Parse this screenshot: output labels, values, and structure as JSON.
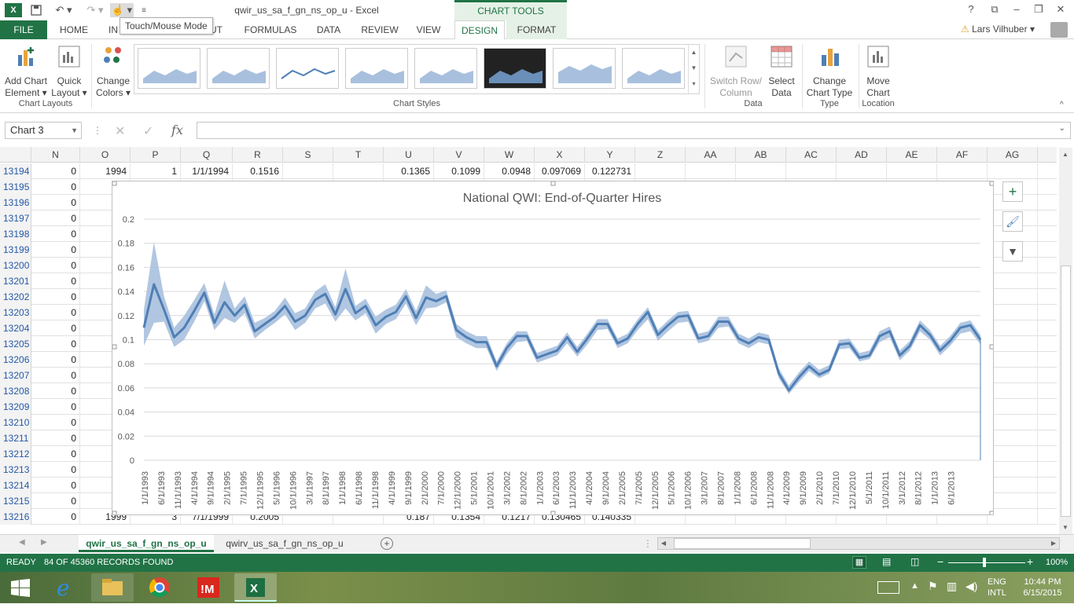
{
  "titlebar": {
    "doc_title": "qwir_us_sa_f_gn_ns_op_u - Excel",
    "context_group": "CHART TOOLS",
    "help": "?",
    "tooltip": "Touch/Mouse Mode"
  },
  "tabs": [
    "FILE",
    "HOME",
    "INSERT",
    "PAGE LAYOUT",
    "FORMULAS",
    "DATA",
    "REVIEW",
    "VIEW",
    "DESIGN",
    "FORMAT"
  ],
  "tab_labels": {
    "file": "FILE",
    "home": "HOME",
    "insert": "IN",
    "formulas": "FORMULAS",
    "data": "DATA",
    "review": "REVIEW",
    "view": "VIEW",
    "design": "DESIGN",
    "format": "FORMAT"
  },
  "user": {
    "name": "Lars Vilhuber"
  },
  "ribbon": {
    "add_chart_element": [
      "Add Chart",
      "Element ▾"
    ],
    "quick_layout": [
      "Quick",
      "Layout ▾"
    ],
    "change_colors": [
      "Change",
      "Colors ▾"
    ],
    "switch_row_col": [
      "Switch Row/",
      "Column"
    ],
    "select_data": [
      "Select",
      "Data"
    ],
    "change_chart_type": [
      "Change",
      "Chart Type"
    ],
    "move_chart": [
      "Move",
      "Chart"
    ],
    "groups": {
      "chart_layouts": "Chart Layouts",
      "chart_styles": "Chart Styles",
      "data": "Data",
      "type": "Type",
      "location": "Location"
    }
  },
  "formula_bar": {
    "name_box": "Chart 3",
    "fx": "fx",
    "value": ""
  },
  "columns": [
    "N",
    "O",
    "P",
    "Q",
    "R",
    "S",
    "T",
    "U",
    "V",
    "W",
    "X",
    "Y",
    "Z",
    "AA",
    "AB",
    "AC",
    "AD",
    "AE",
    "AF",
    "AG"
  ],
  "rows": [
    {
      "id": "13194",
      "cells": [
        "0",
        "1994",
        "1",
        "1/1/1994",
        "0.1516",
        "",
        "",
        "0.1365",
        "0.1099",
        "0.0948",
        "0.097069",
        "0.122731"
      ]
    },
    {
      "id": "13195",
      "cells": [
        "0"
      ]
    },
    {
      "id": "13196",
      "cells": [
        "0"
      ]
    },
    {
      "id": "13197",
      "cells": [
        "0"
      ]
    },
    {
      "id": "13198",
      "cells": [
        "0"
      ]
    },
    {
      "id": "13199",
      "cells": [
        "0"
      ]
    },
    {
      "id": "13200",
      "cells": [
        "0"
      ]
    },
    {
      "id": "13201",
      "cells": [
        "0"
      ]
    },
    {
      "id": "13202",
      "cells": [
        "0"
      ]
    },
    {
      "id": "13203",
      "cells": [
        "0"
      ]
    },
    {
      "id": "13204",
      "cells": [
        "0"
      ]
    },
    {
      "id": "13205",
      "cells": [
        "0"
      ]
    },
    {
      "id": "13206",
      "cells": [
        "0"
      ]
    },
    {
      "id": "13207",
      "cells": [
        "0"
      ]
    },
    {
      "id": "13208",
      "cells": [
        "0"
      ]
    },
    {
      "id": "13209",
      "cells": [
        "0"
      ]
    },
    {
      "id": "13210",
      "cells": [
        "0"
      ]
    },
    {
      "id": "13211",
      "cells": [
        "0"
      ]
    },
    {
      "id": "13212",
      "cells": [
        "0"
      ]
    },
    {
      "id": "13213",
      "cells": [
        "0"
      ]
    },
    {
      "id": "13214",
      "cells": [
        "0"
      ]
    },
    {
      "id": "13215",
      "cells": [
        "0"
      ]
    },
    {
      "id": "13216",
      "cells": [
        "0",
        "1999",
        "3",
        "7/1/1999",
        "0.2005",
        "",
        "",
        "0.187",
        "0.1354",
        "0.1217",
        "0.130465",
        "0.140335"
      ]
    }
  ],
  "chart_data": {
    "type": "line",
    "title": "National QWI: End-of-Quarter Hires",
    "xlabel": "",
    "ylabel": "",
    "ylim": [
      0,
      0.2
    ],
    "yticks": [
      "0",
      "0.02",
      "0.04",
      "0.06",
      "0.08",
      "0.1",
      "0.12",
      "0.14",
      "0.16",
      "0.18",
      "0.2"
    ],
    "xtick_labels": [
      "1/1/1993",
      "6/1/1993",
      "11/1/1993",
      "4/1/1994",
      "9/1/1994",
      "2/1/1995",
      "7/1/1995",
      "12/1/1995",
      "5/1/1996",
      "10/1/1996",
      "3/1/1997",
      "8/1/1997",
      "1/1/1998",
      "6/1/1998",
      "11/1/1998",
      "4/1/1999",
      "9/1/1999",
      "2/1/2000",
      "7/1/2000",
      "12/1/2000",
      "5/1/2001",
      "10/1/2001",
      "3/1/2002",
      "8/1/2002",
      "1/1/2003",
      "6/1/2003",
      "11/1/2003",
      "4/1/2004",
      "9/1/2004",
      "2/1/2005",
      "7/1/2005",
      "12/1/2005",
      "5/1/2006",
      "10/1/2006",
      "3/1/2007",
      "8/1/2007",
      "1/1/2008",
      "6/1/2008",
      "11/1/2008",
      "4/1/2009",
      "9/1/2009",
      "2/1/2010",
      "7/1/2010",
      "12/1/2010",
      "5/1/2011",
      "10/1/2011",
      "3/1/2012",
      "8/1/2012",
      "1/1/2013",
      "6/1/2013"
    ],
    "grid": true,
    "colors": {
      "line": "#4f7fb5",
      "band": "#a8c0de"
    },
    "series": [
      {
        "values": [
          0.11,
          0.146,
          0.125,
          0.102,
          0.11,
          0.124,
          0.139,
          0.114,
          0.131,
          0.12,
          0.129,
          0.107,
          0.113,
          0.119,
          0.128,
          0.115,
          0.12,
          0.133,
          0.138,
          0.121,
          0.142,
          0.122,
          0.128,
          0.112,
          0.119,
          0.123,
          0.136,
          0.118,
          0.135,
          0.132,
          0.136,
          0.108,
          0.102,
          0.098,
          0.098,
          0.078,
          0.093,
          0.103,
          0.103,
          0.085,
          0.088,
          0.091,
          0.102,
          0.09,
          0.101,
          0.113,
          0.113,
          0.097,
          0.101,
          0.113,
          0.123,
          0.104,
          0.112,
          0.119,
          0.12,
          0.101,
          0.103,
          0.115,
          0.115,
          0.101,
          0.097,
          0.102,
          0.1,
          0.072,
          0.058,
          0.069,
          0.078,
          0.071,
          0.075,
          0.096,
          0.097,
          0.085,
          0.087,
          0.103,
          0.107,
          0.087,
          0.095,
          0.112,
          0.104,
          0.091,
          0.099,
          0.11,
          0.112,
          0.1
        ]
      },
      {
        "values": [
          0.095,
          0.114,
          0.115,
          0.094,
          0.1,
          0.115,
          0.132,
          0.108,
          0.118,
          0.114,
          0.122,
          0.101,
          0.108,
          0.114,
          0.121,
          0.108,
          0.114,
          0.126,
          0.13,
          0.115,
          0.126,
          0.116,
          0.122,
          0.105,
          0.113,
          0.117,
          0.13,
          0.112,
          0.126,
          0.127,
          0.131,
          0.102,
          0.097,
          0.093,
          0.093,
          0.074,
          0.088,
          0.098,
          0.099,
          0.081,
          0.084,
          0.087,
          0.097,
          0.086,
          0.096,
          0.108,
          0.109,
          0.093,
          0.097,
          0.108,
          0.117,
          0.099,
          0.107,
          0.114,
          0.115,
          0.097,
          0.099,
          0.11,
          0.111,
          0.097,
          0.093,
          0.098,
          0.096,
          0.068,
          0.055,
          0.065,
          0.074,
          0.068,
          0.072,
          0.092,
          0.093,
          0.082,
          0.084,
          0.098,
          0.102,
          0.083,
          0.091,
          0.107,
          0.1,
          0.087,
          0.095,
          0.105,
          0.107,
          0.096
        ]
      },
      {
        "values": [
          0.125,
          0.181,
          0.136,
          0.11,
          0.12,
          0.133,
          0.147,
          0.121,
          0.149,
          0.126,
          0.136,
          0.114,
          0.118,
          0.124,
          0.135,
          0.122,
          0.126,
          0.14,
          0.146,
          0.127,
          0.159,
          0.128,
          0.134,
          0.119,
          0.125,
          0.129,
          0.142,
          0.124,
          0.145,
          0.138,
          0.141,
          0.113,
          0.107,
          0.103,
          0.103,
          0.082,
          0.097,
          0.107,
          0.107,
          0.089,
          0.092,
          0.095,
          0.106,
          0.094,
          0.105,
          0.117,
          0.117,
          0.101,
          0.105,
          0.117,
          0.127,
          0.108,
          0.116,
          0.123,
          0.124,
          0.105,
          0.107,
          0.119,
          0.119,
          0.105,
          0.101,
          0.106,
          0.104,
          0.076,
          0.062,
          0.073,
          0.082,
          0.075,
          0.079,
          0.1,
          0.101,
          0.089,
          0.091,
          0.107,
          0.111,
          0.091,
          0.099,
          0.116,
          0.108,
          0.095,
          0.103,
          0.114,
          0.116,
          0.104
        ]
      }
    ]
  },
  "sheets": {
    "active": "qwir_us_sa_f_gn_ns_op_u",
    "other": "qwirv_us_sa_f_gn_ns_op_u"
  },
  "status": {
    "ready": "READY",
    "records": "84 OF 45360 RECORDS FOUND",
    "zoom": "100%"
  },
  "taskbar": {
    "lang1": "ENG",
    "lang2": "INTL",
    "time": "10:44 PM",
    "date": "6/15/2015"
  }
}
